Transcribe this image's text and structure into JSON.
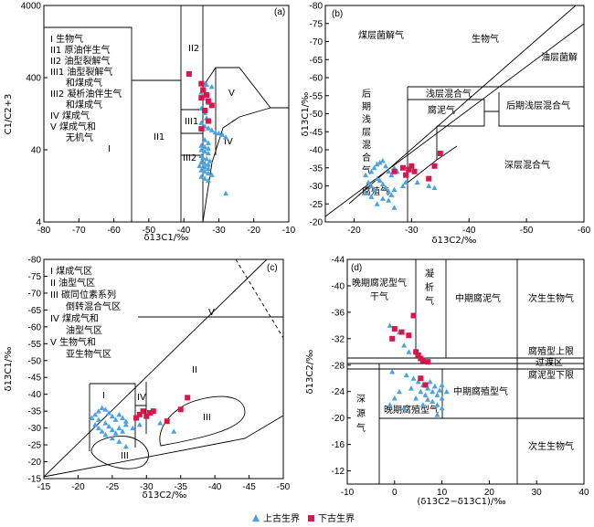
{
  "legend": {
    "upper_paleozoic": "上古生界",
    "lower_paleozoic": "下古生界",
    "colors": {
      "upper_paleozoic": "#4aa3df",
      "lower_paleozoic": "#d9164b"
    }
  },
  "chart_data": [
    {
      "id": "a",
      "type": "scatter",
      "panel_label": "(a)",
      "xlabel": "δ13C1/‰",
      "ylabel": "C1/C2+3",
      "xlim": [
        -80,
        -10
      ],
      "ylim": [
        4,
        4000
      ],
      "yscale": "log",
      "xticks": [
        "-80",
        "-70",
        "-60",
        "-50",
        "-40",
        "-30",
        "-20",
        "-10"
      ],
      "yticks": [
        "4",
        "40",
        "400",
        "4000"
      ],
      "legend_items": [
        "I 生物气",
        "II1 原油伴生气",
        "II2 油型裂解气",
        "III1 油型裂解气",
        "和煤成气",
        "III2 凝析油伴生气",
        "和煤成气",
        "IV 煤成气",
        "V 煤成气和",
        "无机气"
      ],
      "zones": [
        "II2",
        "III1",
        "III2",
        "IV",
        "V",
        "II1",
        "I"
      ],
      "series": [
        {
          "name": "上古生界",
          "points": [
            [
              -34,
              330
            ],
            [
              -33.5,
              320
            ],
            [
              -32,
              300
            ],
            [
              -35,
              250
            ],
            [
              -34.5,
              210
            ],
            [
              -33,
              180
            ],
            [
              -35,
              150
            ],
            [
              -34,
              130
            ],
            [
              -33.5,
              110
            ],
            [
              -35,
              95
            ],
            [
              -34,
              85
            ],
            [
              -33,
              80
            ],
            [
              -34.5,
              78
            ],
            [
              -32,
              75
            ],
            [
              -31,
              70
            ],
            [
              -30,
              68
            ],
            [
              -29,
              65
            ],
            [
              -28,
              60
            ],
            [
              -34,
              55
            ],
            [
              -33,
              50
            ],
            [
              -35,
              46
            ],
            [
              -34,
              44
            ],
            [
              -33,
              42
            ],
            [
              -35,
              40
            ],
            [
              -34,
              38
            ],
            [
              -33,
              36
            ],
            [
              -35,
              33
            ],
            [
              -34.5,
              31
            ],
            [
              -33.5,
              30
            ],
            [
              -32.5,
              28
            ],
            [
              -35,
              27
            ],
            [
              -34,
              26
            ],
            [
              -33,
              25
            ],
            [
              -35.5,
              24
            ],
            [
              -34,
              23
            ],
            [
              -33,
              22
            ],
            [
              -35,
              21
            ],
            [
              -34,
              20
            ],
            [
              -33,
              19
            ],
            [
              -32,
              18
            ],
            [
              -35,
              17
            ],
            [
              -34,
              16
            ],
            [
              -33,
              15
            ],
            [
              -28,
              10
            ]
          ]
        },
        {
          "name": "下古生界",
          "points": [
            [
              -38.5,
              450
            ],
            [
              -35,
              330
            ],
            [
              -34.5,
              270
            ],
            [
              -33.5,
              230
            ],
            [
              -35,
              210
            ],
            [
              -33,
              190
            ],
            [
              -32,
              165
            ],
            [
              -34,
              140
            ],
            [
              -33,
              100
            ],
            [
              -35,
              78
            ]
          ]
        }
      ]
    },
    {
      "id": "b",
      "type": "scatter",
      "panel_label": "(b)",
      "xlabel": "δ13C2/‰",
      "ylabel": "δ13C1/‰",
      "xlim": [
        -15,
        -60
      ],
      "ylim": [
        -20,
        -80
      ],
      "xticks": [
        "-20",
        "-30",
        "-40",
        "-50",
        "-60"
      ],
      "yticks": [
        "-80",
        "-75",
        "-70",
        "-65",
        "-60",
        "-55",
        "-50",
        "-45",
        "-40",
        "-35",
        "-30",
        "-25",
        "-20"
      ],
      "zones": [
        "煤层菌解气",
        "生物气",
        "油层菌解",
        "浅层混合气",
        "腐泥气",
        "后期浅层混合气",
        "后期浅层混合气",
        "深层混合气",
        "腐殖气"
      ],
      "series": [
        {
          "name": "上古生界",
          "points": [
            [
              -22,
              -33
            ],
            [
              -23,
              -34
            ],
            [
              -23.5,
              -35
            ],
            [
              -24,
              -36
            ],
            [
              -24.5,
              -36.5
            ],
            [
              -25,
              -37
            ],
            [
              -25.5,
              -35.5
            ],
            [
              -26,
              -34
            ],
            [
              -26.5,
              -33
            ],
            [
              -27,
              -35
            ],
            [
              -27.5,
              -34
            ],
            [
              -22.5,
              -31
            ],
            [
              -23,
              -30
            ],
            [
              -23.5,
              -29
            ],
            [
              -24,
              -32
            ],
            [
              -24.5,
              -31.5
            ],
            [
              -25,
              -30.5
            ],
            [
              -25.5,
              -29.5
            ],
            [
              -26,
              -28.5
            ],
            [
              -26.5,
              -27.5
            ],
            [
              -27,
              -29
            ],
            [
              -25,
              -26.5
            ],
            [
              -24,
              -25
            ],
            [
              -23,
              -27
            ],
            [
              -22,
              -28
            ],
            [
              -28.5,
              -30
            ],
            [
              -29,
              -31
            ],
            [
              -33,
              -30
            ],
            [
              -34,
              -29.5
            ],
            [
              -31,
              -31
            ],
            [
              -26,
              -26
            ],
            [
              -27,
              -24
            ]
          ]
        },
        {
          "name": "下古生界",
          "points": [
            [
              -27,
              -34
            ],
            [
              -28.5,
              -35
            ],
            [
              -29,
              -33
            ],
            [
              -29.5,
              -34.5
            ],
            [
              -30,
              -35.5
            ],
            [
              -30.5,
              -34
            ],
            [
              -33,
              -32
            ],
            [
              -34,
              -35.5
            ],
            [
              -35,
              -39
            ]
          ]
        }
      ]
    },
    {
      "id": "c",
      "type": "scatter",
      "panel_label": "(c)",
      "xlabel": "δ13C2/‰",
      "ylabel": "δ13C1/‰",
      "xlim": [
        -15,
        -50
      ],
      "ylim": [
        -15,
        -80
      ],
      "xticks": [
        "-15",
        "-20",
        "-25",
        "-30",
        "-35",
        "-40",
        "-45",
        "-50"
      ],
      "yticks": [
        "-80",
        "-75",
        "-70",
        "-65",
        "-60",
        "-55",
        "-50",
        "-45",
        "-40",
        "-35",
        "-30",
        "-25",
        "-20",
        "-15"
      ],
      "legend_items": [
        "I 煤成气区",
        "II 油型气区",
        "III 碳同位素系列",
        "倒转混合气区",
        "IV 煤成气和",
        "油型气区",
        "V 生物气和",
        "亚生物气区"
      ],
      "zones": [
        "I",
        "IV",
        "II",
        "III",
        "III",
        "V"
      ],
      "series": [
        {
          "name": "上古生界",
          "points": [
            [
              -22,
              -33
            ],
            [
              -22.5,
              -34
            ],
            [
              -23,
              -35
            ],
            [
              -23.5,
              -36
            ],
            [
              -24,
              -35.5
            ],
            [
              -24.5,
              -34.5
            ],
            [
              -25,
              -33.5
            ],
            [
              -25.5,
              -32.5
            ],
            [
              -26,
              -34
            ],
            [
              -26.5,
              -33
            ],
            [
              -27,
              -32
            ],
            [
              -22.5,
              -31
            ],
            [
              -23,
              -30
            ],
            [
              -23.5,
              -29
            ],
            [
              -24,
              -31.5
            ],
            [
              -24.5,
              -30.5
            ],
            [
              -25,
              -29.5
            ],
            [
              -25.5,
              -28.5
            ],
            [
              -26,
              -30
            ],
            [
              -26.5,
              -29
            ],
            [
              -27,
              -31
            ],
            [
              -23,
              -32.5
            ],
            [
              -24,
              -28
            ],
            [
              -25,
              -27
            ],
            [
              -26,
              -26
            ],
            [
              -27,
              -24.5
            ],
            [
              -28,
              -30
            ],
            [
              -29,
              -31
            ],
            [
              -32,
              -31.5
            ],
            [
              -34,
              -29
            ]
          ]
        },
        {
          "name": "下古生界",
          "points": [
            [
              -29,
              -34
            ],
            [
              -29.5,
              -35
            ],
            [
              -30,
              -33.5
            ],
            [
              -30.5,
              -34.5
            ],
            [
              -31,
              -35
            ],
            [
              -28.5,
              -33
            ],
            [
              -33,
              -32
            ],
            [
              -35,
              -35.5
            ],
            [
              -36,
              -39
            ]
          ]
        }
      ]
    },
    {
      "id": "d",
      "type": "scatter",
      "panel_label": "(d)",
      "xlabel": "(δ13C2−δ13C1)/‰",
      "ylabel": "δ13C2/‰",
      "xlim": [
        -10,
        40
      ],
      "ylim": [
        -10,
        -44
      ],
      "xticks": [
        "-10",
        "0",
        "10",
        "20",
        "30",
        "40"
      ],
      "yticks": [
        "-44",
        "-40",
        "-36",
        "-32",
        "-28",
        "-24",
        "-20",
        "-16",
        "-12"
      ],
      "zones": [
        "晚期腐泥型气",
        "干气",
        "凝",
        "析",
        "气",
        "中期腐泥气",
        "次生生物气",
        "腐殖型上限",
        "过渡区",
        "腐泥型下限",
        "深",
        "源",
        "气",
        "中期腐殖型气",
        "晚期腐殖型气",
        "次生生物气"
      ],
      "series": [
        {
          "name": "上古生界",
          "points": [
            [
              -1,
              -34
            ],
            [
              1,
              -33
            ],
            [
              2,
              -31
            ],
            [
              3,
              -30
            ],
            [
              -0.5,
              -27
            ],
            [
              2.5,
              -26.5
            ],
            [
              4,
              -26
            ],
            [
              5,
              -25.5
            ],
            [
              6,
              -25
            ],
            [
              7,
              -24.5
            ],
            [
              8,
              -24
            ],
            [
              9,
              -23.5
            ],
            [
              10,
              -23
            ],
            [
              7.5,
              -25.5
            ],
            [
              8.5,
              -24.8
            ],
            [
              9.5,
              -24.2
            ],
            [
              6.5,
              -23.5
            ],
            [
              7,
              -22.8
            ],
            [
              8,
              -22.5
            ],
            [
              9,
              -22
            ],
            [
              10,
              -21.5
            ],
            [
              6,
              -22
            ],
            [
              5.5,
              -24
            ],
            [
              4.5,
              -23
            ],
            [
              3.5,
              -24.5
            ],
            [
              1,
              -24
            ],
            [
              0,
              -23
            ],
            [
              -1,
              -22
            ],
            [
              2,
              -21.5
            ],
            [
              9,
              -20.5
            ],
            [
              10,
              -25
            ],
            [
              11,
              -24
            ]
          ]
        },
        {
          "name": "下古生界",
          "points": [
            [
              0,
              -33.5
            ],
            [
              1.5,
              -33
            ],
            [
              3,
              -32.5
            ],
            [
              4,
              -35.5
            ],
            [
              4.5,
              -30
            ],
            [
              5,
              -29.5
            ],
            [
              5.5,
              -29
            ],
            [
              6,
              -28.7
            ],
            [
              7,
              -28.5
            ],
            [
              5.5,
              -26
            ],
            [
              6.5,
              -25
            ],
            [
              -0.5,
              -32
            ]
          ]
        }
      ]
    }
  ]
}
